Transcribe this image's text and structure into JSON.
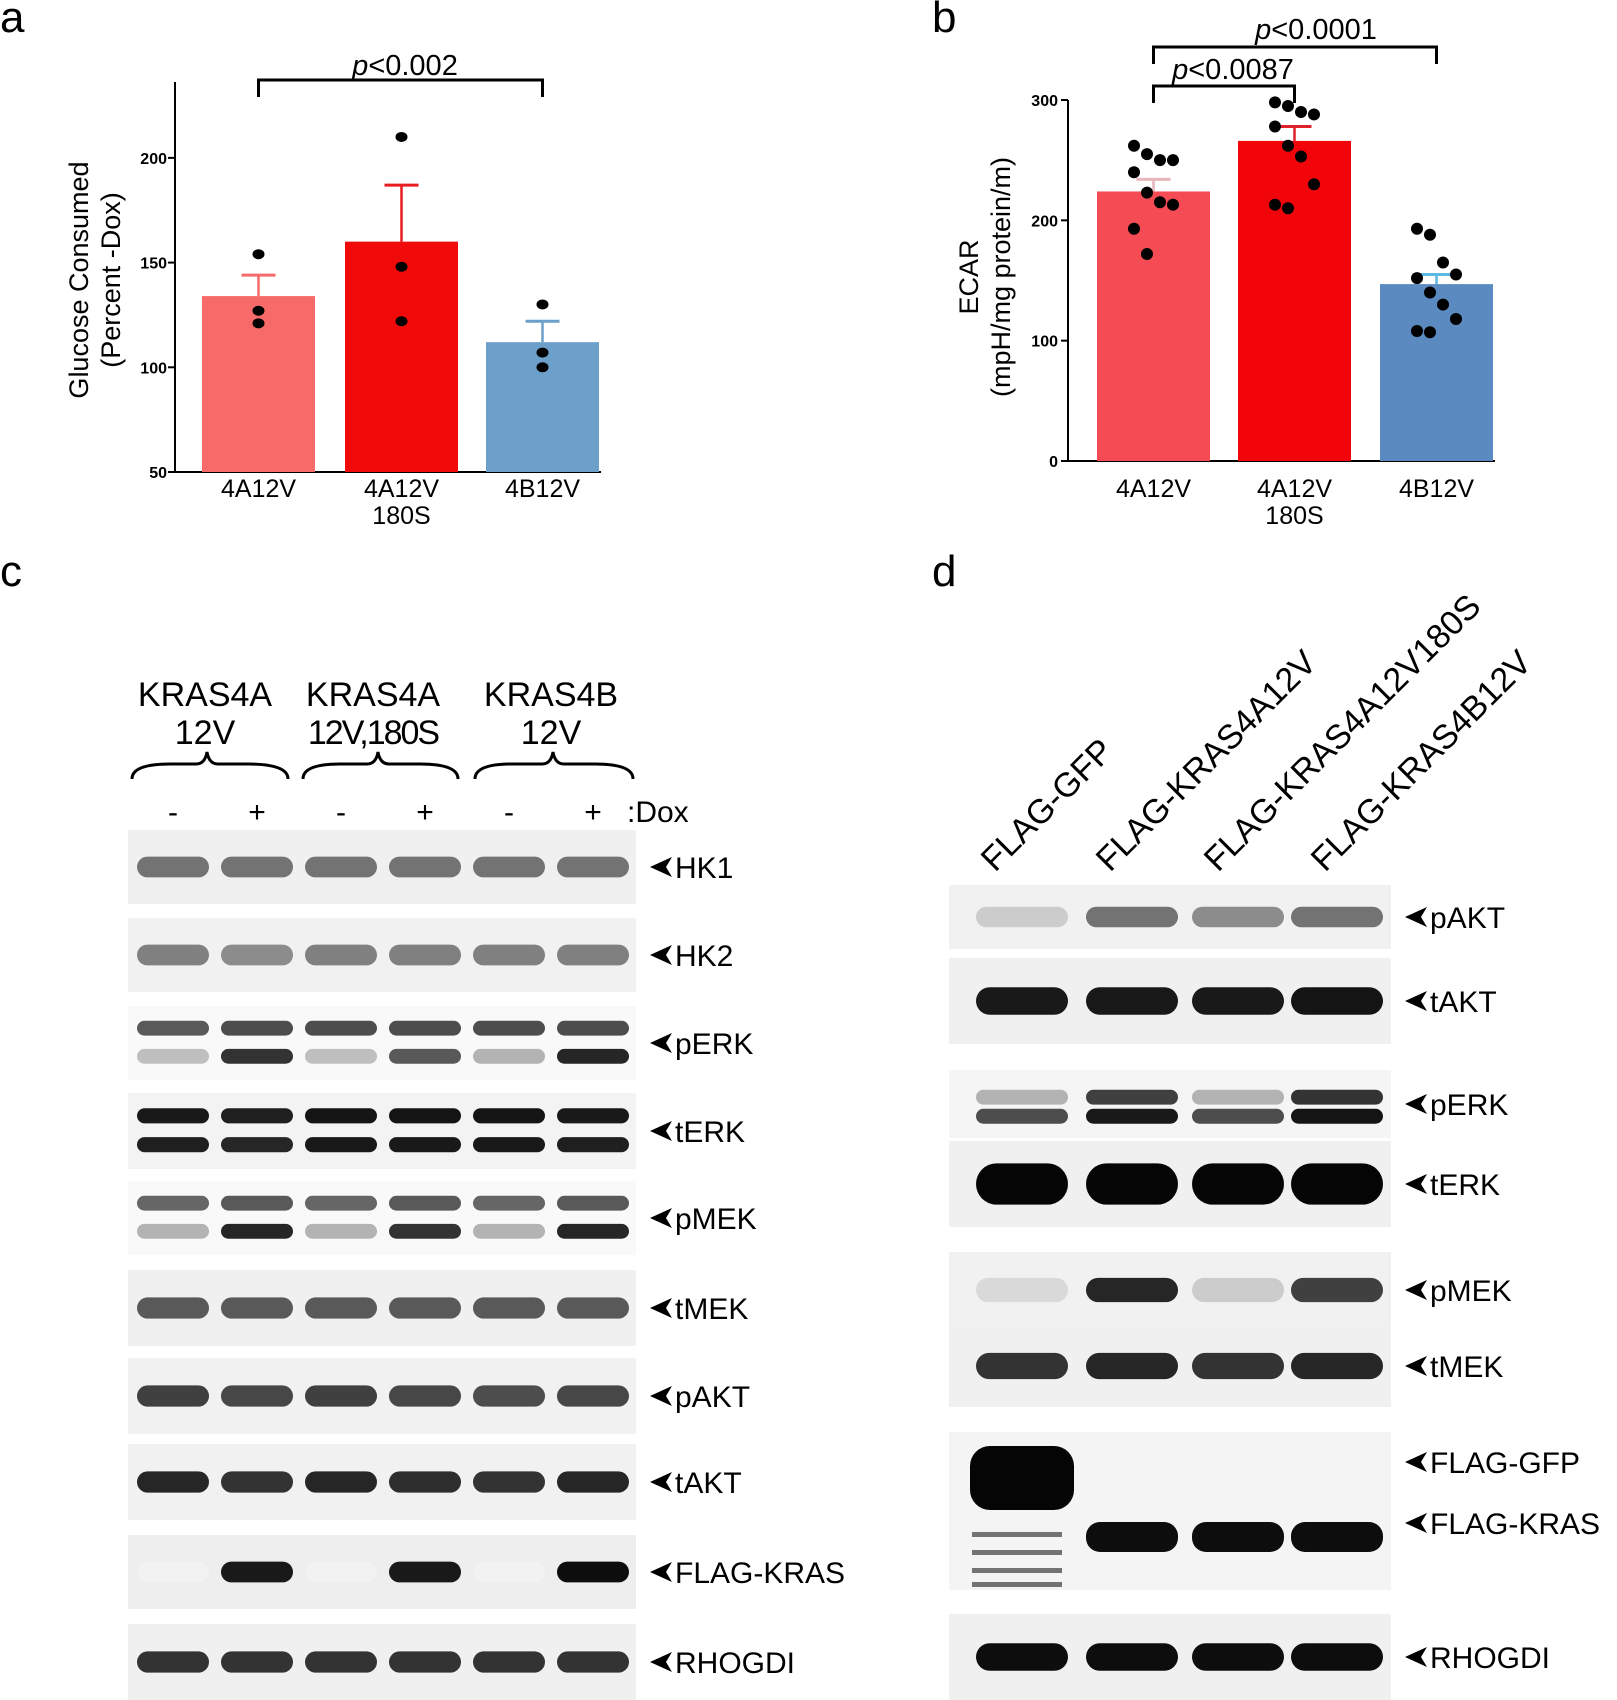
{
  "figure": {
    "panels": [
      "a",
      "b",
      "c",
      "d"
    ],
    "colors": {
      "4A12V_a": "#f76a6a",
      "4A12V_180S_a": "#f10a0a",
      "4B12V_a": "#6d9fcb",
      "4A12V_b": "#f44b54",
      "4A12V_180S_b": "#f1050b",
      "4B12V_b": "#5a8ac0",
      "error_a_4A12V": "#f76a6a",
      "error_a_180S": "#e81e1e",
      "error_a_4B12V": "#6d9fcb",
      "error_b_4A12V": "#e8b6ba",
      "error_b_180S": "#e0202a",
      "error_b_4B12V": "#5bb8e0"
    }
  },
  "chart_data": [
    {
      "panel": "a",
      "type": "bar",
      "ylabel": [
        "Glucose Consumed",
        "(Percent -Dox)"
      ],
      "ylim": [
        50,
        220
      ],
      "yticks": [
        "50",
        "100",
        "150",
        "200"
      ],
      "categories": [
        [
          "4A12V"
        ],
        [
          "4A12V",
          "180S"
        ],
        [
          "4B12V"
        ]
      ],
      "values": [
        134,
        160,
        112
      ],
      "errors": [
        10,
        27,
        10
      ],
      "points": [
        [
          154,
          127,
          121
        ],
        [
          210,
          148,
          122
        ],
        [
          130,
          107,
          100
        ]
      ],
      "annotations": [
        {
          "text_italic": "p",
          "text": "<0.002",
          "from": 0,
          "to": 2
        }
      ]
    },
    {
      "panel": "b",
      "type": "bar",
      "ylabel": [
        "ECAR",
        "(mpH/mg protein/m)"
      ],
      "ylim": [
        0,
        300
      ],
      "yticks": [
        "0",
        "100",
        "200",
        "300"
      ],
      "categories": [
        [
          "4A12V"
        ],
        [
          "4A12V",
          "180S"
        ],
        [
          "4B12V"
        ]
      ],
      "values": [
        224,
        266,
        147
      ],
      "errors": [
        10,
        12,
        8
      ],
      "points": [
        [
          262,
          255,
          250,
          250,
          240,
          223,
          215,
          213,
          193,
          172
        ],
        [
          298,
          295,
          290,
          288,
          278,
          262,
          253,
          230,
          213,
          210
        ],
        [
          193,
          188,
          165,
          155,
          152,
          140,
          130,
          118,
          108,
          107
        ]
      ],
      "annotations": [
        {
          "text_italic": "p",
          "text": "<0.0087",
          "from": 0,
          "to": 1
        },
        {
          "text_italic": "p",
          "text": "<0.0001",
          "from": 0,
          "to": 2
        }
      ]
    }
  ],
  "blot_c": {
    "groups": [
      [
        "KRAS4A",
        "12V"
      ],
      [
        "KRAS4A",
        "12V,180S"
      ],
      [
        "KRAS4B",
        "12V"
      ]
    ],
    "dox_signs": [
      "-",
      "+",
      "-",
      "+",
      "-",
      "+"
    ],
    "dox_label": ":Dox",
    "rows": [
      {
        "label": "HK1",
        "bands": [
          [
            0.5,
            0.55,
            0.55,
            0.55,
            0.55,
            0.55,
            0.55
          ]
        ]
      },
      {
        "label": "HK2",
        "bands": [
          [
            0.45,
            0.5,
            0.45,
            0.5,
            0.5,
            0.5,
            0.5
          ]
        ]
      },
      {
        "label": "pERK",
        "bands": [
          [
            0.2,
            0.65,
            0.7,
            0.7,
            0.7,
            0.7,
            0.7
          ],
          [
            0.67,
            0.25,
            0.8,
            0.25,
            0.65,
            0.3,
            0.85
          ]
        ]
      },
      {
        "label": "tERK",
        "bands": [
          [
            0.38,
            0.9,
            0.88,
            0.92,
            0.92,
            0.92,
            0.9
          ],
          [
            0.62,
            0.88,
            0.85,
            0.9,
            0.9,
            0.9,
            0.88
          ]
        ]
      },
      {
        "label": "pMEK",
        "bands": [
          [
            0.2,
            0.6,
            0.65,
            0.6,
            0.65,
            0.6,
            0.65
          ],
          [
            0.63,
            0.3,
            0.85,
            0.3,
            0.8,
            0.3,
            0.85
          ]
        ]
      },
      {
        "label": "tMEK",
        "bands": [
          [
            0.5,
            0.65,
            0.65,
            0.65,
            0.65,
            0.65,
            0.65
          ]
        ]
      },
      {
        "label": "pAKT",
        "bands": [
          [
            0.47,
            0.75,
            0.72,
            0.75,
            0.72,
            0.7,
            0.72
          ]
        ]
      },
      {
        "label": "tAKT",
        "bands": [
          [
            0.45,
            0.85,
            0.8,
            0.85,
            0.82,
            0.8,
            0.85
          ]
        ]
      },
      {
        "label": "FLAG-KRAS",
        "bands": [
          [
            0.55,
            0.05,
            0.9,
            0.05,
            0.9,
            0.05,
            0.95
          ]
        ]
      },
      {
        "label": "RHOGDI",
        "bands": [
          [
            0.5,
            0.8,
            0.8,
            0.8,
            0.8,
            0.8,
            0.8
          ]
        ]
      }
    ]
  },
  "blot_d": {
    "lanes": [
      "FLAG-GFP",
      "FLAG-KRAS4A12V",
      "FLAG-KRAS4A12V180S",
      "FLAG-KRAS4B12V"
    ],
    "rows": [
      {
        "label": "pAKT",
        "bands": [
          [
            0.45,
            0.2,
            0.55,
            0.45,
            0.55
          ]
        ]
      },
      {
        "label": "tAKT",
        "bands": [
          [
            0.5,
            0.9,
            0.9,
            0.9,
            0.92
          ]
        ]
      },
      {
        "label": "pERK",
        "bands": [
          [
            0.32,
            0.3,
            0.75,
            0.3,
            0.8
          ],
          [
            0.55,
            0.7,
            0.9,
            0.7,
            0.92
          ]
        ]
      },
      {
        "label": "tERK",
        "bands": [
          [
            0.5,
            0.98,
            0.98,
            0.98,
            0.98
          ]
        ]
      },
      {
        "label": "pMEK",
        "bands": [
          [
            0.45,
            0.15,
            0.85,
            0.2,
            0.75
          ]
        ]
      },
      {
        "label": "tMEK",
        "bands": [
          [
            0.5,
            0.8,
            0.85,
            0.8,
            0.85
          ]
        ]
      },
      {
        "label": "FLAG-GFP",
        "bands": [
          [
            0.25,
            0.98,
            0.0,
            0.0,
            0.0
          ]
        ]
      },
      {
        "label": "FLAG-KRAS",
        "bands": [
          [
            0.65,
            0.0,
            0.95,
            0.95,
            0.95
          ]
        ]
      },
      {
        "label": "RHOGDI",
        "bands": [
          [
            0.5,
            0.95,
            0.95,
            0.95,
            0.95
          ]
        ]
      }
    ]
  }
}
